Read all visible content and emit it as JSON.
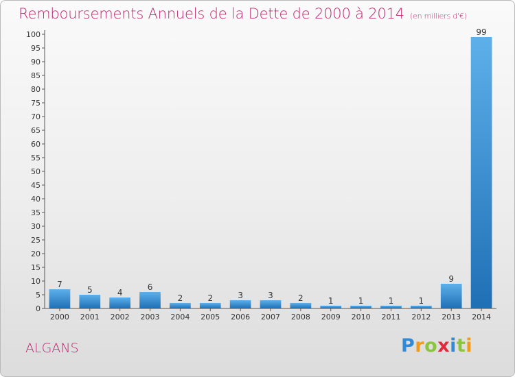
{
  "title": "Remboursements Annuels de la Dette de 2000 à 2014",
  "unit": "(en milliers d'€)",
  "town": "ALGANS",
  "logo_letters": [
    "P",
    "r",
    "o",
    "x",
    "i",
    "t",
    "i"
  ],
  "colors": {
    "title": "#c0246e",
    "bar_top": "#5db0ea",
    "bar_bottom": "#1f6fb5",
    "axis": "#555555",
    "grid": "#cfcfcf"
  },
  "chart_data": {
    "type": "bar",
    "categories": [
      "2000",
      "2001",
      "2002",
      "2003",
      "2004",
      "2005",
      "2006",
      "2007",
      "2008",
      "2009",
      "2010",
      "2011",
      "2012",
      "2013",
      "2014"
    ],
    "values": [
      7,
      5,
      4,
      6,
      2,
      2,
      3,
      3,
      2,
      1,
      1,
      1,
      1,
      9,
      99
    ],
    "ylim": [
      0,
      100
    ],
    "yticks": [
      0,
      5,
      10,
      15,
      20,
      25,
      30,
      35,
      40,
      45,
      50,
      55,
      60,
      65,
      70,
      75,
      80,
      85,
      90,
      95,
      100
    ],
    "data_labels": true,
    "grid": false,
    "legend": "none"
  }
}
